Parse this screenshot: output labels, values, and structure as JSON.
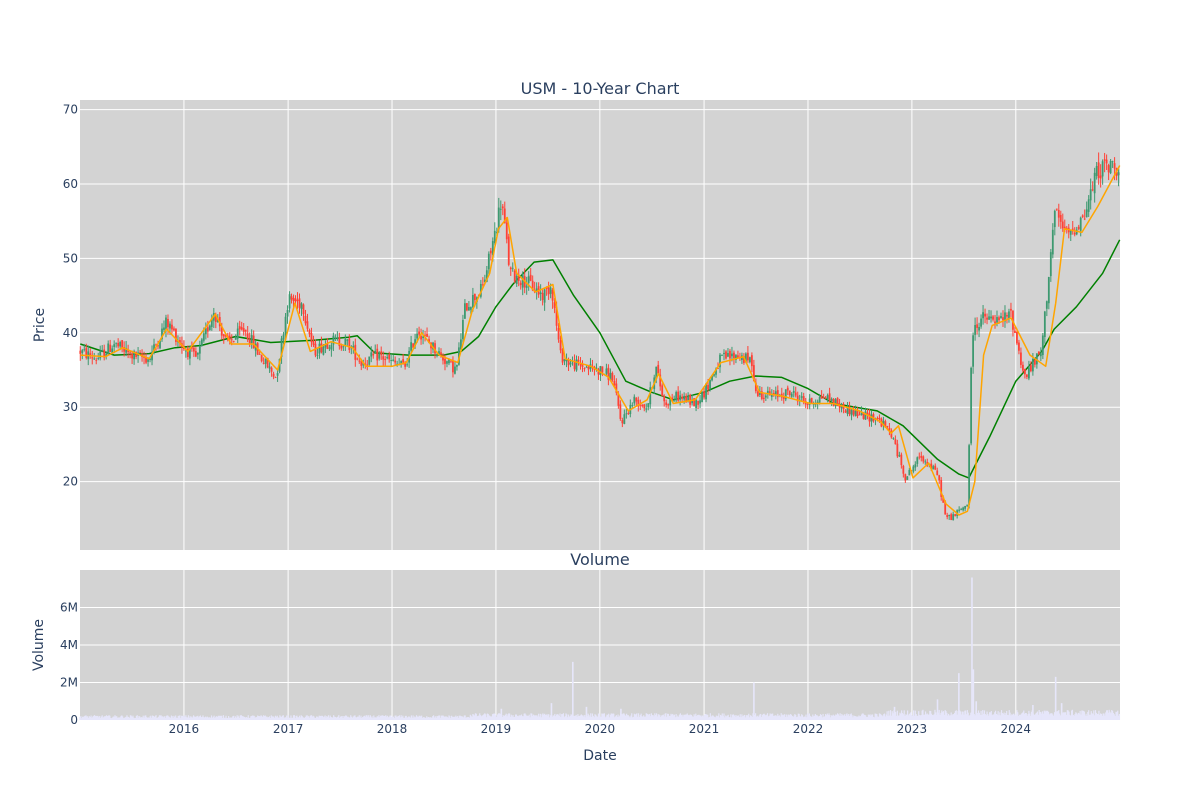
{
  "chart_data": [
    {
      "type": "candlestick",
      "title": "USM - 10-Year Chart",
      "xlabel": "",
      "ylabel": "Price",
      "xlim": [
        "2015-01-01",
        "2025-01-01"
      ],
      "ylim": [
        10.8,
        71.3
      ],
      "yticks": [
        20,
        30,
        40,
        50,
        60,
        70
      ],
      "xticks": [
        "2016",
        "2017",
        "2018",
        "2019",
        "2020",
        "2021",
        "2022",
        "2023",
        "2024"
      ],
      "colors": {
        "increasing": "#3d9970",
        "decreasing": "#ff4136",
        "ma_short": "#ffa500",
        "ma_long": "#008000",
        "plot_bg": "#d3d3d3",
        "grid": "#ffffff"
      },
      "price_path": [
        [
          "2015-01-02",
          37.5
        ],
        [
          "2015-03-01",
          36.5
        ],
        [
          "2015-05-01",
          38.5
        ],
        [
          "2015-07-01",
          37.0
        ],
        [
          "2015-09-01",
          36.5
        ],
        [
          "2015-11-01",
          41.5
        ],
        [
          "2016-01-01",
          38.0
        ],
        [
          "2016-02-15",
          36.5
        ],
        [
          "2016-04-15",
          43.0
        ],
        [
          "2016-06-01",
          38.5
        ],
        [
          "2016-08-01",
          40.5
        ],
        [
          "2016-10-01",
          36.5
        ],
        [
          "2016-11-20",
          34.0
        ],
        [
          "2017-01-01",
          44.5
        ],
        [
          "2017-02-20",
          44.0
        ],
        [
          "2017-04-01",
          37.5
        ],
        [
          "2017-06-01",
          39.0
        ],
        [
          "2017-08-01",
          38.5
        ],
        [
          "2017-09-15",
          36.0
        ],
        [
          "2017-11-15",
          37.0
        ],
        [
          "2018-01-01",
          36.0
        ],
        [
          "2018-02-15",
          35.5
        ],
        [
          "2018-04-01",
          40.5
        ],
        [
          "2018-05-15",
          38.5
        ],
        [
          "2018-07-15",
          36.0
        ],
        [
          "2018-08-15",
          35.0
        ],
        [
          "2018-09-15",
          43.5
        ],
        [
          "2018-11-15",
          46.0
        ],
        [
          "2019-01-01",
          54.0
        ],
        [
          "2019-01-20",
          58.0
        ],
        [
          "2019-02-20",
          48.0
        ],
        [
          "2019-04-15",
          47.0
        ],
        [
          "2019-06-15",
          45.0
        ],
        [
          "2019-07-15",
          46.5
        ],
        [
          "2019-08-15",
          37.0
        ],
        [
          "2019-09-15",
          36.0
        ],
        [
          "2019-11-01",
          35.5
        ],
        [
          "2020-01-01",
          35.0
        ],
        [
          "2020-02-15",
          34.0
        ],
        [
          "2020-03-15",
          28.0
        ],
        [
          "2020-05-01",
          31.0
        ],
        [
          "2020-06-15",
          30.0
        ],
        [
          "2020-07-15",
          35.5
        ],
        [
          "2020-08-15",
          30.5
        ],
        [
          "2020-10-01",
          31.5
        ],
        [
          "2020-12-01",
          30.5
        ],
        [
          "2021-01-01",
          32.0
        ],
        [
          "2021-03-01",
          36.5
        ],
        [
          "2021-05-01",
          37.0
        ],
        [
          "2021-06-20",
          36.0
        ],
        [
          "2021-07-01",
          32.0
        ],
        [
          "2021-09-01",
          31.5
        ],
        [
          "2021-11-01",
          32.0
        ],
        [
          "2022-01-01",
          30.5
        ],
        [
          "2022-03-01",
          31.5
        ],
        [
          "2022-05-01",
          30.0
        ],
        [
          "2022-07-01",
          29.0
        ],
        [
          "2022-09-01",
          28.5
        ],
        [
          "2022-10-20",
          26.5
        ],
        [
          "2022-11-10",
          24.0
        ],
        [
          "2022-12-10",
          20.5
        ],
        [
          "2023-02-01",
          23.5
        ],
        [
          "2023-04-01",
          21.0
        ],
        [
          "2023-05-01",
          15.0
        ],
        [
          "2023-06-01",
          15.5
        ],
        [
          "2023-07-15",
          17.0
        ],
        [
          "2023-08-01",
          40.0
        ],
        [
          "2023-09-01",
          42.0
        ],
        [
          "2023-11-01",
          41.5
        ],
        [
          "2023-12-15",
          42.5
        ],
        [
          "2024-02-01",
          34.0
        ],
        [
          "2024-04-01",
          37.5
        ],
        [
          "2024-05-15",
          56.0
        ],
        [
          "2024-07-01",
          53.0
        ],
        [
          "2024-09-01",
          56.0
        ],
        [
          "2024-10-15",
          62.0
        ],
        [
          "2024-12-31",
          62.5
        ]
      ],
      "ma_short": [
        [
          "2015-01-02",
          37.0
        ],
        [
          "2015-04-01",
          36.8
        ],
        [
          "2015-06-01",
          38.0
        ],
        [
          "2015-09-01",
          36.5
        ],
        [
          "2015-11-01",
          40.5
        ],
        [
          "2016-01-15",
          37.5
        ],
        [
          "2016-04-20",
          42.5
        ],
        [
          "2016-06-15",
          38.5
        ],
        [
          "2016-09-01",
          38.5
        ],
        [
          "2016-11-25",
          35.0
        ],
        [
          "2017-01-25",
          44.0
        ],
        [
          "2017-03-20",
          37.5
        ],
        [
          "2017-06-01",
          38.8
        ],
        [
          "2017-08-15",
          38.0
        ],
        [
          "2017-10-01",
          35.5
        ],
        [
          "2018-01-01",
          35.5
        ],
        [
          "2018-02-20",
          36.0
        ],
        [
          "2018-04-15",
          40.0
        ],
        [
          "2018-06-15",
          37.0
        ],
        [
          "2018-08-20",
          36.0
        ],
        [
          "2018-10-10",
          43.0
        ],
        [
          "2018-12-10",
          48.0
        ],
        [
          "2019-01-10",
          54.0
        ],
        [
          "2019-02-10",
          55.5
        ],
        [
          "2019-03-15",
          48.0
        ],
        [
          "2019-05-20",
          45.5
        ],
        [
          "2019-07-20",
          46.5
        ],
        [
          "2019-09-01",
          36.5
        ],
        [
          "2019-12-01",
          35.5
        ],
        [
          "2020-02-01",
          34.0
        ],
        [
          "2020-04-10",
          29.5
        ],
        [
          "2020-06-15",
          31.0
        ],
        [
          "2020-07-25",
          34.5
        ],
        [
          "2020-09-15",
          30.5
        ],
        [
          "2020-12-01",
          31.0
        ],
        [
          "2021-03-01",
          36.0
        ],
        [
          "2021-05-20",
          36.8
        ],
        [
          "2021-07-15",
          32.0
        ],
        [
          "2021-10-01",
          31.5
        ],
        [
          "2022-01-10",
          30.5
        ],
        [
          "2022-04-01",
          30.5
        ],
        [
          "2022-07-01",
          29.5
        ],
        [
          "2022-09-15",
          28.0
        ],
        [
          "2022-10-20",
          26.5
        ],
        [
          "2022-11-15",
          27.5
        ],
        [
          "2023-01-05",
          20.5
        ],
        [
          "2023-03-01",
          22.5
        ],
        [
          "2023-05-01",
          17.0
        ],
        [
          "2023-06-15",
          15.5
        ],
        [
          "2023-07-15",
          16.0
        ],
        [
          "2023-08-10",
          20.0
        ],
        [
          "2023-09-10",
          37.0
        ],
        [
          "2023-10-10",
          41.0
        ],
        [
          "2023-12-15",
          42.0
        ],
        [
          "2024-02-20",
          37.0
        ],
        [
          "2024-04-15",
          35.5
        ],
        [
          "2024-05-20",
          44.0
        ],
        [
          "2024-06-20",
          54.0
        ],
        [
          "2024-08-20",
          53.5
        ],
        [
          "2024-10-15",
          57.0
        ],
        [
          "2024-12-31",
          62.5
        ]
      ],
      "ma_long": [
        [
          "2015-01-02",
          38.5
        ],
        [
          "2015-05-01",
          37.0
        ],
        [
          "2015-09-01",
          37.2
        ],
        [
          "2015-12-01",
          38.0
        ],
        [
          "2016-03-01",
          38.3
        ],
        [
          "2016-07-01",
          39.5
        ],
        [
          "2016-11-01",
          38.7
        ],
        [
          "2017-04-01",
          39.0
        ],
        [
          "2017-08-01",
          39.4
        ],
        [
          "2017-09-01",
          39.6
        ],
        [
          "2017-11-01",
          37.3
        ],
        [
          "2018-03-01",
          37.0
        ],
        [
          "2018-07-01",
          37.0
        ],
        [
          "2018-09-01",
          37.5
        ],
        [
          "2018-11-01",
          39.5
        ],
        [
          "2019-01-01",
          43.5
        ],
        [
          "2019-03-01",
          46.5
        ],
        [
          "2019-05-15",
          49.5
        ],
        [
          "2019-07-20",
          49.8
        ],
        [
          "2019-10-01",
          45.0
        ],
        [
          "2020-01-01",
          40.0
        ],
        [
          "2020-04-01",
          33.5
        ],
        [
          "2020-07-01",
          32.0
        ],
        [
          "2020-09-15",
          31.0
        ],
        [
          "2021-01-01",
          32.0
        ],
        [
          "2021-04-01",
          33.5
        ],
        [
          "2021-07-01",
          34.2
        ],
        [
          "2021-10-01",
          34.0
        ],
        [
          "2022-01-01",
          32.5
        ],
        [
          "2022-04-01",
          30.5
        ],
        [
          "2022-09-01",
          29.5
        ],
        [
          "2022-12-01",
          27.5
        ],
        [
          "2023-04-01",
          23.0
        ],
        [
          "2023-06-15",
          21.0
        ],
        [
          "2023-07-20",
          20.5
        ],
        [
          "2023-10-01",
          26.0
        ],
        [
          "2024-01-01",
          33.5
        ],
        [
          "2024-04-01",
          37.5
        ],
        [
          "2024-05-15",
          40.5
        ],
        [
          "2024-08-01",
          43.5
        ],
        [
          "2024-11-01",
          48.0
        ],
        [
          "2024-12-31",
          52.5
        ]
      ]
    },
    {
      "type": "bar",
      "title": "Volume",
      "xlabel": "Date",
      "ylabel": "Volume",
      "ylim": [
        0,
        8000000
      ],
      "yticks": [
        0,
        2000000,
        4000000,
        6000000
      ],
      "ytick_labels": [
        "0",
        "2M",
        "4M",
        "6M"
      ],
      "xlim": [
        "2015-01-01",
        "2025-01-01"
      ],
      "xticks": [
        "2016",
        "2017",
        "2018",
        "2019",
        "2020",
        "2021",
        "2022",
        "2023",
        "2024"
      ],
      "colors": {
        "bar": "#e6e6fa",
        "plot_bg": "#d3d3d3",
        "grid": "#ffffff"
      },
      "baseline_volume": 200000,
      "spikes": [
        [
          "2019-01-20",
          600000
        ],
        [
          "2019-07-15",
          900000
        ],
        [
          "2019-09-28",
          3100000
        ],
        [
          "2019-11-15",
          700000
        ],
        [
          "2020-03-15",
          600000
        ],
        [
          "2021-06-25",
          2000000
        ],
        [
          "2022-11-01",
          700000
        ],
        [
          "2023-04-01",
          1100000
        ],
        [
          "2023-06-15",
          2500000
        ],
        [
          "2023-07-31",
          7600000
        ],
        [
          "2023-08-05",
          2700000
        ],
        [
          "2023-08-15",
          1000000
        ],
        [
          "2024-03-01",
          800000
        ],
        [
          "2024-05-20",
          2300000
        ],
        [
          "2024-06-10",
          900000
        ]
      ]
    }
  ]
}
